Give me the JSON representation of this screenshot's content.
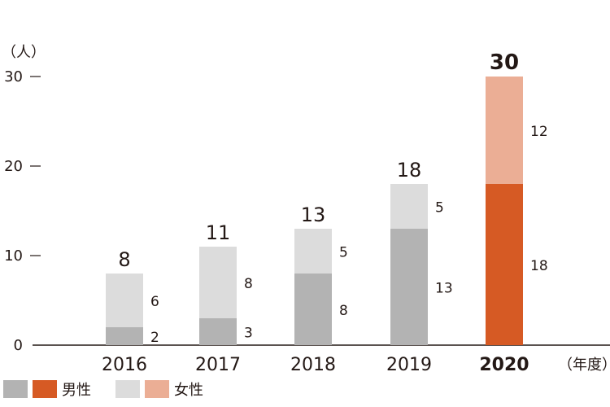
{
  "chart_data": {
    "type": "bar",
    "stacked": true,
    "ylabel": "（人）",
    "xlabel": "（年度）",
    "ylim": [
      0,
      30
    ],
    "yticks": [
      "0",
      "10",
      "20",
      "30"
    ],
    "categories": [
      "2016",
      "2017",
      "2018",
      "2019",
      "2020"
    ],
    "highlight_category": "2020",
    "series": [
      {
        "name": "男性",
        "values": [
          2,
          3,
          8,
          13,
          18
        ]
      },
      {
        "name": "女性",
        "values": [
          6,
          8,
          5,
          5,
          12
        ]
      }
    ],
    "totals": [
      8,
      11,
      13,
      18,
      30
    ],
    "colors": {
      "male": "#b3b3b3",
      "female": "#dcdcdc",
      "male_highlight": "#d65a24",
      "female_highlight": "#ebae95",
      "axis": "#231815"
    },
    "legend": {
      "male_label": "男性",
      "female_label": "女性"
    }
  }
}
